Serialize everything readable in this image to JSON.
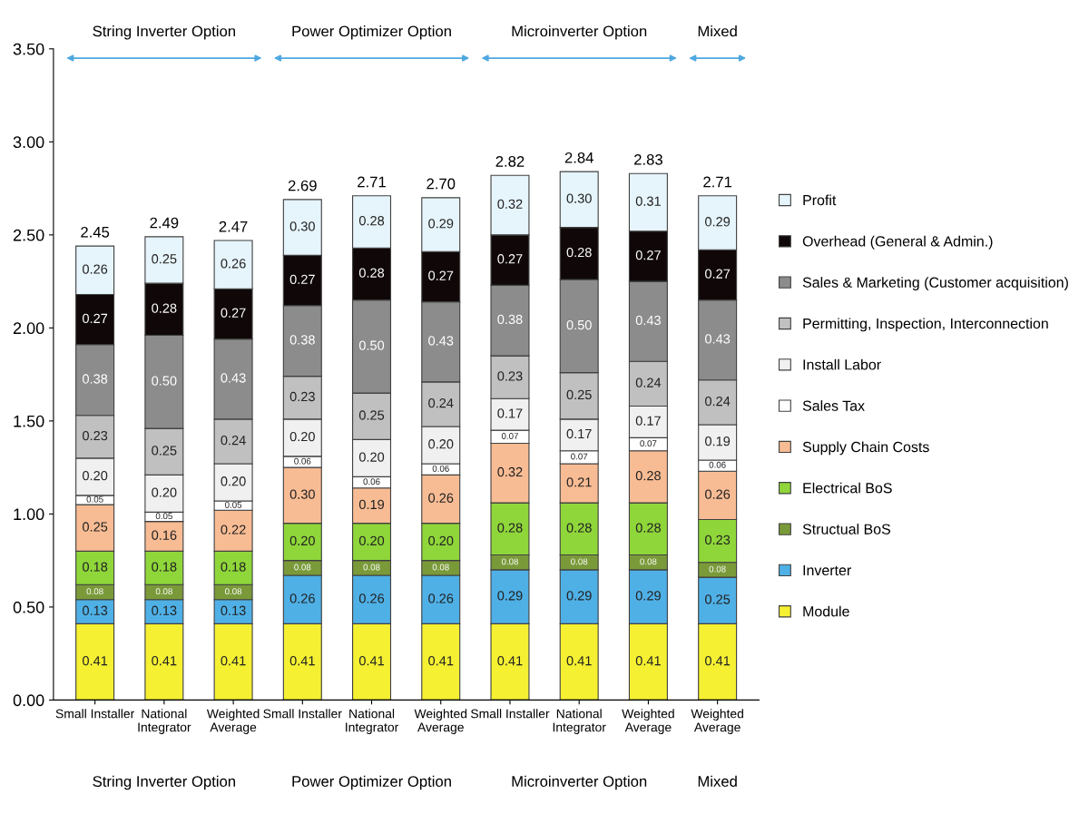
{
  "chart_data": {
    "type": "bar",
    "stacked": true,
    "categories": [
      "Small Installer",
      "National\nIntegrator",
      "Weighted\nAverage",
      "Small Installer",
      "National\nIntegrator",
      "Weighted\nAverage",
      "Small Installer",
      "National\nIntegrator",
      "Weighted\nAverage",
      "Weighted\nAverage"
    ],
    "series": [
      {
        "name": "Module",
        "color": "#f5f032",
        "values": [
          0.41,
          0.41,
          0.41,
          0.41,
          0.41,
          0.41,
          0.41,
          0.41,
          0.41,
          0.41
        ],
        "value_labels": [
          "0.41",
          "0.41",
          "0.41",
          "0.41",
          "0.41",
          "0.41",
          "0.41",
          "0.41",
          "0.41",
          "0.41"
        ]
      },
      {
        "name": "Inverter",
        "color": "#4fb0e6",
        "values": [
          0.13,
          0.13,
          0.13,
          0.26,
          0.26,
          0.26,
          0.29,
          0.29,
          0.29,
          0.25
        ],
        "value_labels": [
          "0.13",
          "0.13",
          "0.13",
          "0.26",
          "0.26",
          "0.26",
          "0.29",
          "0.29",
          "0.29",
          "0.25"
        ]
      },
      {
        "name": "Structual BoS",
        "color": "#7a9a3a",
        "values": [
          0.08,
          0.08,
          0.08,
          0.08,
          0.08,
          0.08,
          0.08,
          0.08,
          0.08,
          0.08
        ],
        "value_labels": [
          "0.08",
          "0.08",
          "0.08",
          "0.08",
          "0.08",
          "0.08",
          "0.08",
          "0.08",
          "0.08",
          "0.08"
        ]
      },
      {
        "name": "Electrical BoS",
        "color": "#8fd63a",
        "values": [
          0.18,
          0.18,
          0.18,
          0.2,
          0.2,
          0.2,
          0.28,
          0.28,
          0.28,
          0.23
        ],
        "value_labels": [
          "0.18",
          "0.18",
          "0.18",
          "0.20",
          "0.20",
          "0.20",
          "0.28",
          "0.28",
          "0.28",
          "0.23"
        ]
      },
      {
        "name": "Supply Chain Costs",
        "color": "#f8bc94",
        "values": [
          0.25,
          0.16,
          0.22,
          0.3,
          0.19,
          0.26,
          0.32,
          0.21,
          0.28,
          0.26
        ],
        "value_labels": [
          "0.25",
          "0.16",
          "0.22",
          "0.30",
          "0.19",
          "0.26",
          "0.32",
          "0.21",
          "0.28",
          "0.26"
        ]
      },
      {
        "name": "Sales Tax",
        "color": "#ffffff",
        "values": [
          0.05,
          0.05,
          0.05,
          0.06,
          0.06,
          0.06,
          0.07,
          0.07,
          0.07,
          0.06
        ],
        "value_labels": [
          "0.05",
          "0.05",
          "0.05",
          "0.06",
          "0.06",
          "0.06",
          "0.07",
          "0.07",
          "0.07",
          "0.06"
        ]
      },
      {
        "name": "Install Labor",
        "color": "#f0f0f0",
        "values": [
          0.2,
          0.2,
          0.2,
          0.2,
          0.2,
          0.2,
          0.17,
          0.17,
          0.17,
          0.19
        ],
        "value_labels": [
          "0.20",
          "0.20",
          "0.20",
          "0.20",
          "0.20",
          "0.20",
          "0.17",
          "0.17",
          "0.17",
          "0.19"
        ]
      },
      {
        "name": "Permitting, Inspection, Interconnection",
        "color": "#c0c0c0",
        "values": [
          0.23,
          0.25,
          0.24,
          0.23,
          0.25,
          0.24,
          0.23,
          0.25,
          0.24,
          0.24
        ],
        "value_labels": [
          "0.23",
          "0.25",
          "0.24",
          "0.23",
          "0.25",
          "0.24",
          "0.23",
          "0.25",
          "0.24",
          "0.24"
        ]
      },
      {
        "name": "Sales & Marketing (Customer acquisition)",
        "color": "#8c8c8c",
        "values": [
          0.38,
          0.5,
          0.43,
          0.38,
          0.5,
          0.43,
          0.38,
          0.5,
          0.43,
          0.43
        ],
        "value_labels": [
          "0.38",
          "0.50",
          "0.43",
          "0.38",
          "0.50",
          "0.43",
          "0.38",
          "0.50",
          "0.43",
          "0.43"
        ]
      },
      {
        "name": "Overhead (General & Admin.)",
        "color": "#100808",
        "values": [
          0.27,
          0.28,
          0.27,
          0.27,
          0.28,
          0.27,
          0.27,
          0.28,
          0.27,
          0.27
        ],
        "value_labels": [
          "0.27",
          "0.28",
          "0.27",
          "0.27",
          "0.28",
          "0.27",
          "0.27",
          "0.28",
          "0.27",
          "0.27"
        ]
      },
      {
        "name": "Profit",
        "color": "#e6f4fb",
        "values": [
          0.26,
          0.25,
          0.26,
          0.3,
          0.28,
          0.29,
          0.32,
          0.3,
          0.31,
          0.29
        ],
        "value_labels": [
          "0.26",
          "0.25",
          "0.26",
          "0.30",
          "0.28",
          "0.29",
          "0.32",
          "0.30",
          "0.31",
          "0.29"
        ]
      }
    ],
    "totals": [
      "2.45",
      "2.49",
      "2.47",
      "2.69",
      "2.71",
      "2.70",
      "2.82",
      "2.84",
      "2.83",
      "2.71"
    ],
    "ylim": [
      0,
      3.5
    ],
    "yticks": [
      {
        "value": 0,
        "label": "0.00"
      },
      {
        "value": 0.5,
        "label": "0.50"
      },
      {
        "value": 1.0,
        "label": "1.00"
      },
      {
        "value": 1.5,
        "label": "1.50"
      },
      {
        "value": 2.0,
        "label": "2.00"
      },
      {
        "value": 2.5,
        "label": "2.50"
      },
      {
        "value": 3.0,
        "label": "3.00"
      },
      {
        "value": 3.5,
        "label": "3.50"
      }
    ],
    "legend": "right",
    "grid": false,
    "annotations": [
      "String Inverter Option",
      "Power Optimizer Option",
      "Microinverter Option",
      "Mixed",
      "String Inverter Option",
      "Power Optimizer Option",
      "Microinverter Option",
      "Mixed"
    ]
  }
}
